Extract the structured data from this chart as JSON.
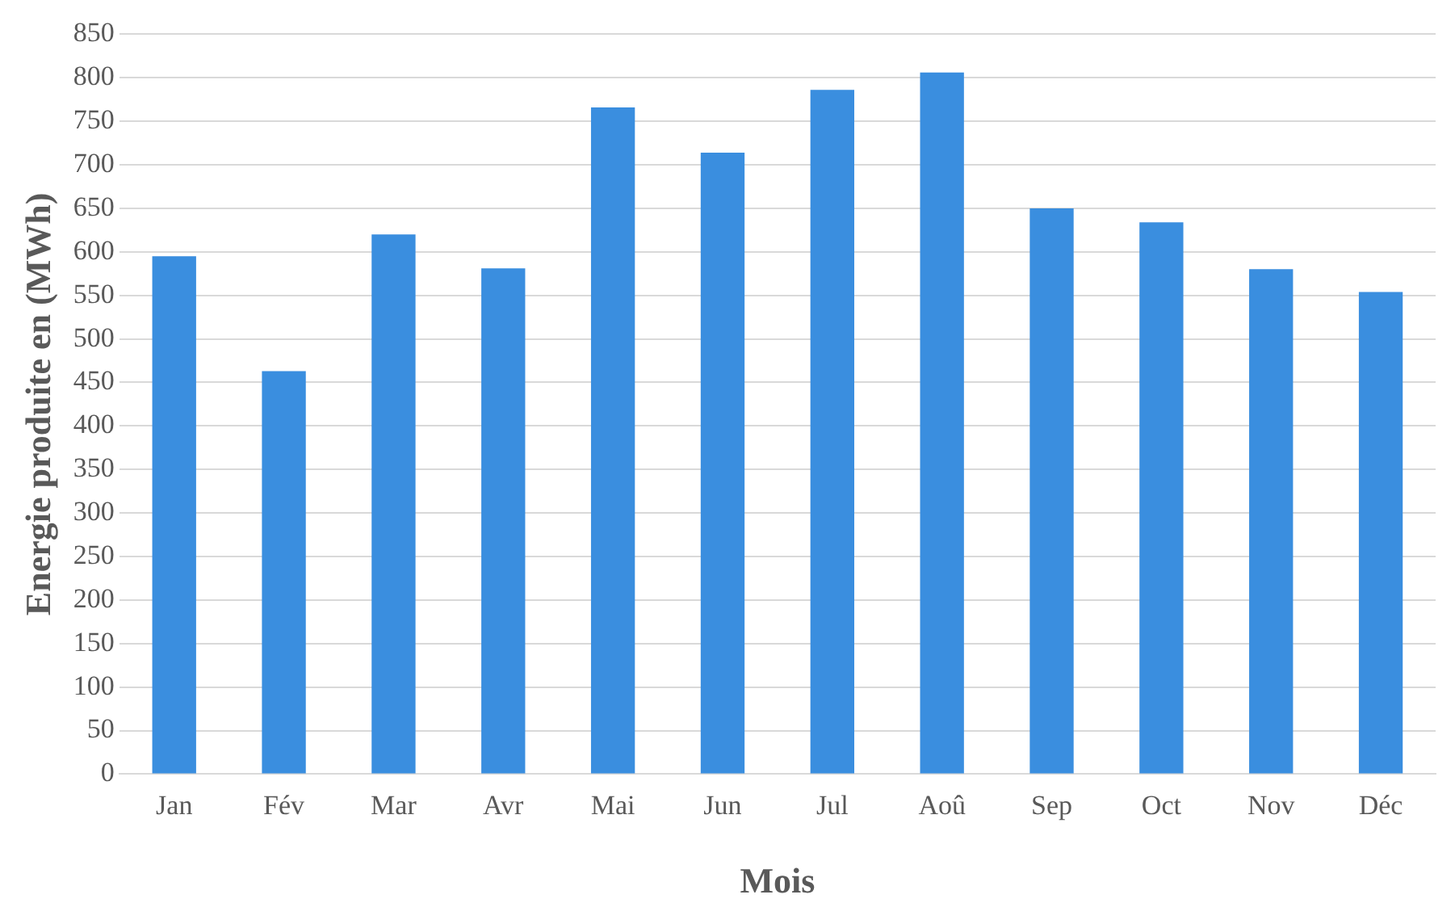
{
  "chart_data": {
    "type": "bar",
    "xlabel": "Mois",
    "ylabel": "Energie produite en (MWh)",
    "categories": [
      "Jan",
      "Fév",
      "Mar",
      "Avr",
      "Mai",
      "Jun",
      "Jul",
      "Aoû",
      "Sep",
      "Oct",
      "Nov",
      "Déc"
    ],
    "values": [
      595,
      463,
      620,
      581,
      766,
      714,
      786,
      806,
      650,
      634,
      580,
      554
    ],
    "color": "#3a8edf",
    "ylim": [
      0,
      850
    ],
    "yticks": [
      0,
      50,
      100,
      150,
      200,
      250,
      300,
      350,
      400,
      450,
      500,
      550,
      600,
      650,
      700,
      750,
      800,
      850
    ],
    "grid": "y",
    "legend": false
  }
}
